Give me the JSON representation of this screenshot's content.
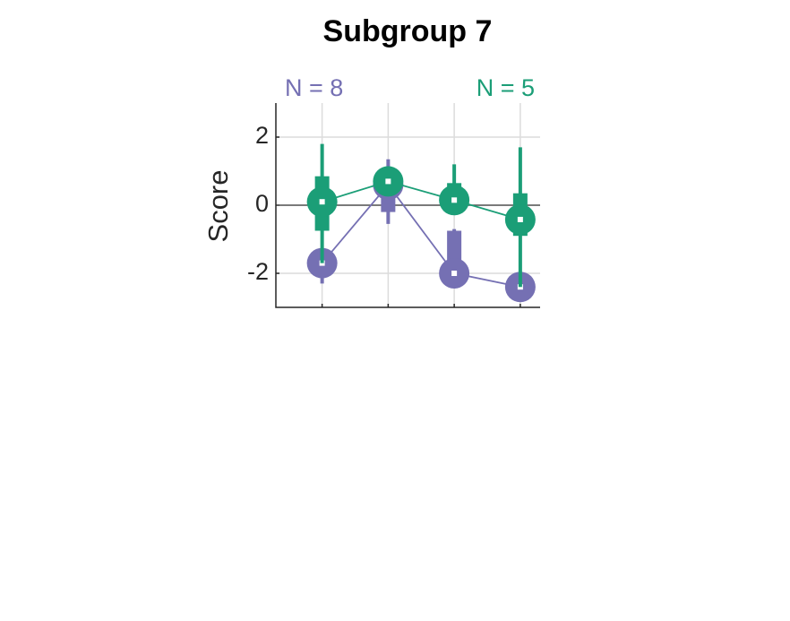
{
  "chart_data": {
    "type": "boxline",
    "title": "Subgroup 7",
    "ylabel": "Score",
    "x": [
      1,
      2,
      3,
      4
    ],
    "xlim": [
      0.3,
      4.3
    ],
    "xticks": [
      1,
      2,
      3,
      4
    ],
    "ylim": [
      -3,
      3
    ],
    "yticks": [
      -2,
      0,
      2
    ],
    "grid": true,
    "zero_line": true,
    "annotations": [
      {
        "text": "N = 8",
        "color": "#7570b3",
        "position": "left"
      },
      {
        "text": "N = 5",
        "color": "#1b9e77",
        "position": "right"
      }
    ],
    "series": [
      {
        "color": "#7570b3",
        "values": [
          -1.7,
          0.6,
          -2.0,
          -2.4
        ],
        "q1": [
          -2.0,
          -0.2,
          -1.85,
          -2.6
        ],
        "q3": [
          -1.4,
          0.55,
          -0.75,
          -2.2
        ],
        "whisker_low": [
          -2.3,
          -0.55,
          -2.1,
          -2.6
        ],
        "whisker_high": [
          -1.4,
          1.35,
          -0.7,
          -2.2
        ]
      },
      {
        "color": "#1b9e77",
        "values": [
          0.1,
          0.7,
          0.15,
          -0.42
        ],
        "q1": [
          -0.75,
          0.5,
          -0.1,
          -0.9
        ],
        "q3": [
          0.85,
          0.8,
          0.65,
          0.35
        ],
        "whisker_low": [
          -1.7,
          0.5,
          -0.1,
          -2.4
        ],
        "whisker_high": [
          1.8,
          0.9,
          1.2,
          1.7
        ]
      }
    ]
  }
}
